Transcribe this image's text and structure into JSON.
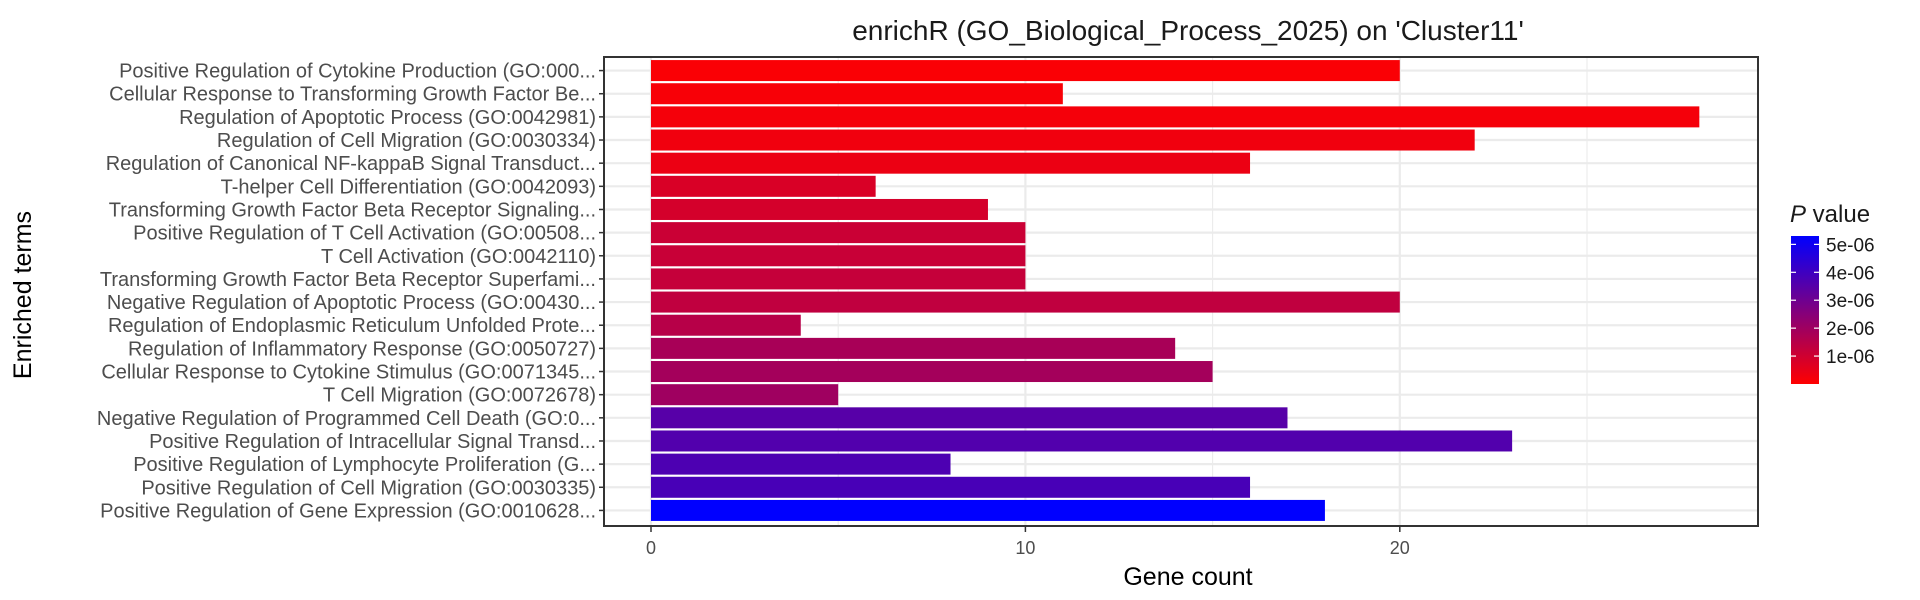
{
  "chart_data": {
    "type": "bar",
    "orientation": "horizontal",
    "title": "enrichR (GO_Biological_Process_2025) on 'Cluster11'",
    "xlabel": "Gene count",
    "ylabel": "Enriched terms",
    "xlim": [
      0,
      29.3
    ],
    "xticks": [
      0,
      10,
      20
    ],
    "grid": true,
    "categories": [
      "Positive Regulation of Cytokine Production (GO:000...",
      "Cellular Response to Transforming Growth Factor Be...",
      "Regulation of Apoptotic Process (GO:0042981)",
      "Regulation of Cell Migration (GO:0030334)",
      "Regulation of Canonical NF-kappaB Signal Transduct...",
      "T-helper Cell Differentiation (GO:0042093)",
      "Transforming Growth Factor Beta Receptor Signaling...",
      "Positive Regulation of T Cell Activation (GO:00508...",
      "T Cell Activation (GO:0042110)",
      "Transforming Growth Factor Beta Receptor Superfami...",
      "Negative Regulation of Apoptotic Process (GO:00430...",
      "Regulation of Endoplasmic Reticulum Unfolded Prote...",
      "Regulation of Inflammatory Response (GO:0050727)",
      "Cellular Response to Cytokine Stimulus (GO:0071345...",
      "T Cell Migration (GO:0072678)",
      "Negative Regulation of Programmed Cell Death (GO:0...",
      "Positive Regulation of Intracellular Signal Transd...",
      "Positive Regulation of Lymphocyte Proliferation (G...",
      "Positive Regulation of Cell Migration (GO:0030335)",
      "Positive Regulation of Gene Expression (GO:0010628..."
    ],
    "values": [
      20,
      11,
      28,
      22,
      16,
      6,
      9,
      10,
      10,
      10,
      20,
      4,
      14,
      15,
      5,
      17,
      23,
      8,
      16,
      18
    ],
    "p_values": [
      1e-07,
      1.5e-07,
      2e-07,
      3e-07,
      4e-07,
      8e-07,
      9e-07,
      1.1e-06,
      1.15e-06,
      1.2e-06,
      1.3e-06,
      1.5e-06,
      1.8e-06,
      1.9e-06,
      2e-06,
      3.5e-06,
      3.6e-06,
      3.7e-06,
      3.8e-06,
      5.3e-06
    ],
    "color_scale": {
      "title_italic": "P",
      "title_rest": " value",
      "low_color": "#ff0000",
      "high_color": "#0000ff",
      "min": 0,
      "max": 5.3e-06,
      "ticks": [
        {
          "value": 1e-06,
          "label": "1e-06"
        },
        {
          "value": 2e-06,
          "label": "2e-06"
        },
        {
          "value": 3e-06,
          "label": "3e-06"
        },
        {
          "value": 4e-06,
          "label": "4e-06"
        },
        {
          "value": 5e-06,
          "label": "5e-06"
        }
      ]
    }
  }
}
